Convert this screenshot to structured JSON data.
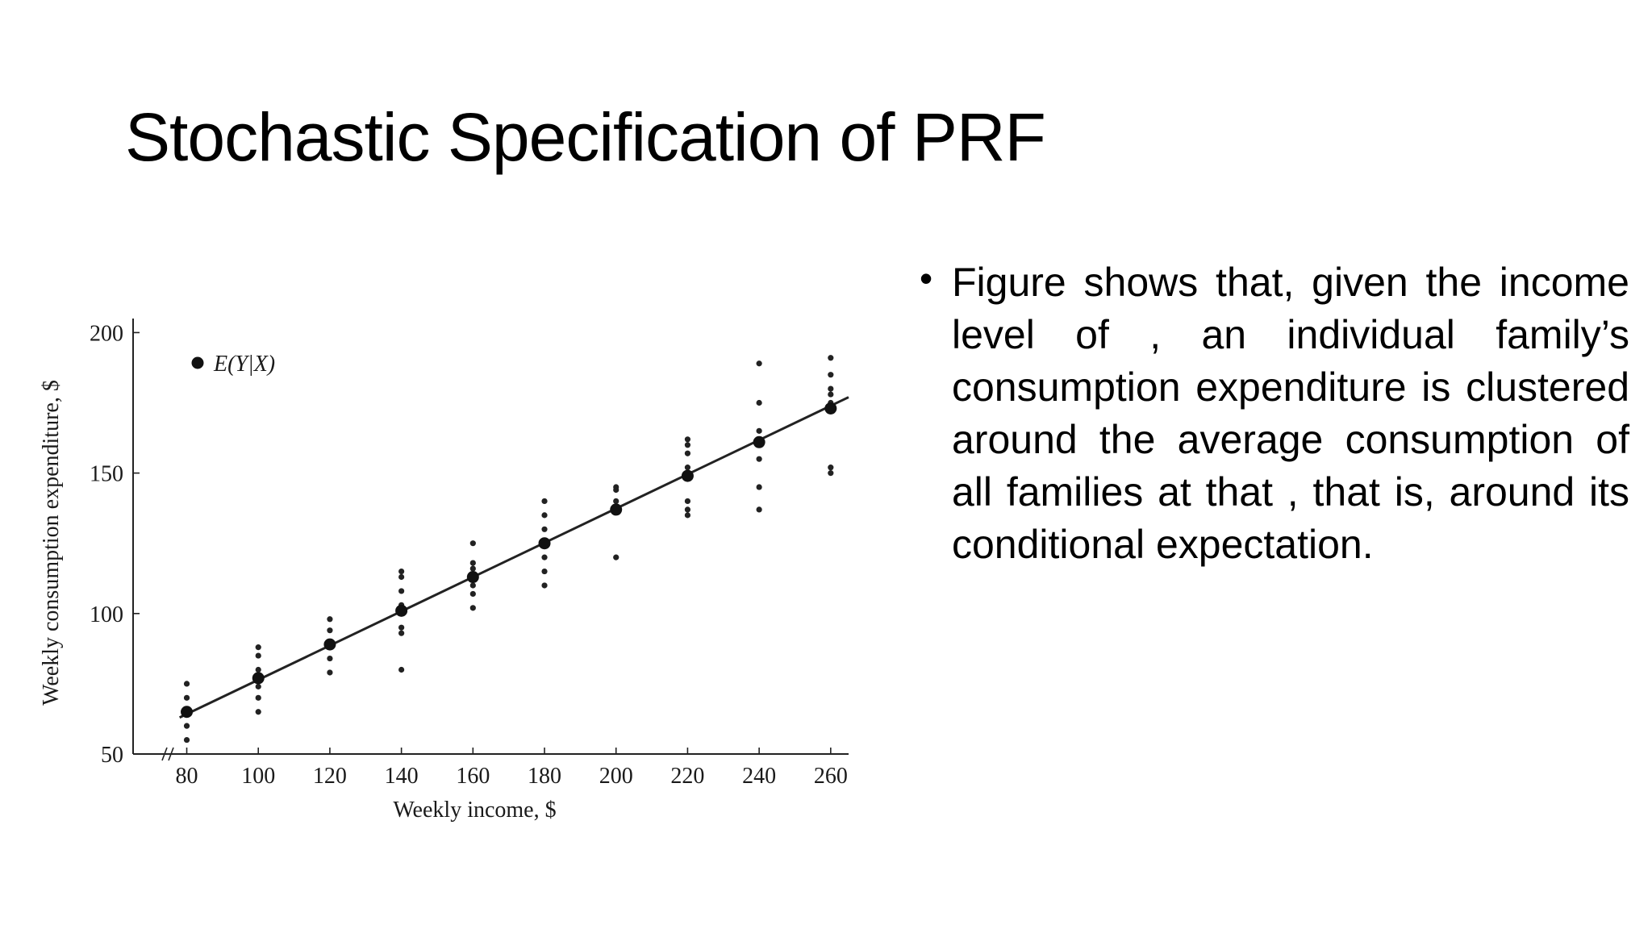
{
  "slide": {
    "title": "Stochastic Specification of PRF",
    "bullets": [
      {
        "text": "Figure shows that, given the income level of  , an individual family’s consumption expenditure is clustered around the average consumption of all families at that  , that is, around its conditional expectation."
      }
    ]
  },
  "chart_data": {
    "type": "scatter",
    "title": "",
    "xlabel": "Weekly income, $",
    "ylabel": "Weekly consumption expenditure, $",
    "xlim": [
      65,
      265
    ],
    "ylim": [
      50,
      205
    ],
    "xticks": [
      80,
      100,
      120,
      140,
      160,
      180,
      200,
      220,
      240,
      260
    ],
    "yticks": [
      50,
      100,
      150,
      200
    ],
    "axis_break": "x",
    "legend": {
      "label": "E(Y|X)",
      "placement": "top-left"
    },
    "series": [
      {
        "name": "E(Y|X)",
        "x": [
          80,
          100,
          120,
          140,
          160,
          180,
          200,
          220,
          240,
          260
        ],
        "y": [
          65,
          77,
          89,
          101,
          113,
          125,
          137,
          149,
          161,
          173
        ]
      },
      {
        "name": "",
        "points": [
          [
            80,
            55
          ],
          [
            80,
            60
          ],
          [
            80,
            65
          ],
          [
            80,
            70
          ],
          [
            80,
            75
          ],
          [
            100,
            65
          ],
          [
            100,
            70
          ],
          [
            100,
            74
          ],
          [
            100,
            80
          ],
          [
            100,
            85
          ],
          [
            100,
            88
          ],
          [
            120,
            79
          ],
          [
            120,
            84
          ],
          [
            120,
            90
          ],
          [
            120,
            94
          ],
          [
            120,
            98
          ],
          [
            140,
            80
          ],
          [
            140,
            93
          ],
          [
            140,
            95
          ],
          [
            140,
            103
          ],
          [
            140,
            108
          ],
          [
            140,
            113
          ],
          [
            140,
            115
          ],
          [
            160,
            102
          ],
          [
            160,
            107
          ],
          [
            160,
            110
          ],
          [
            160,
            116
          ],
          [
            160,
            118
          ],
          [
            160,
            125
          ],
          [
            180,
            110
          ],
          [
            180,
            115
          ],
          [
            180,
            120
          ],
          [
            180,
            130
          ],
          [
            180,
            135
          ],
          [
            180,
            140
          ],
          [
            200,
            120
          ],
          [
            200,
            136
          ],
          [
            200,
            140
          ],
          [
            200,
            144
          ],
          [
            200,
            145
          ],
          [
            220,
            135
          ],
          [
            220,
            137
          ],
          [
            220,
            140
          ],
          [
            220,
            152
          ],
          [
            220,
            157
          ],
          [
            220,
            160
          ],
          [
            220,
            162
          ],
          [
            240,
            137
          ],
          [
            240,
            145
          ],
          [
            240,
            155
          ],
          [
            240,
            165
          ],
          [
            240,
            175
          ],
          [
            240,
            189
          ],
          [
            260,
            150
          ],
          [
            260,
            152
          ],
          [
            260,
            175
          ],
          [
            260,
            178
          ],
          [
            260,
            180
          ],
          [
            260,
            185
          ],
          [
            260,
            191
          ]
        ]
      }
    ],
    "regression_line": {
      "from": [
        78,
        63
      ],
      "to": [
        265,
        177
      ]
    },
    "grid": false
  }
}
